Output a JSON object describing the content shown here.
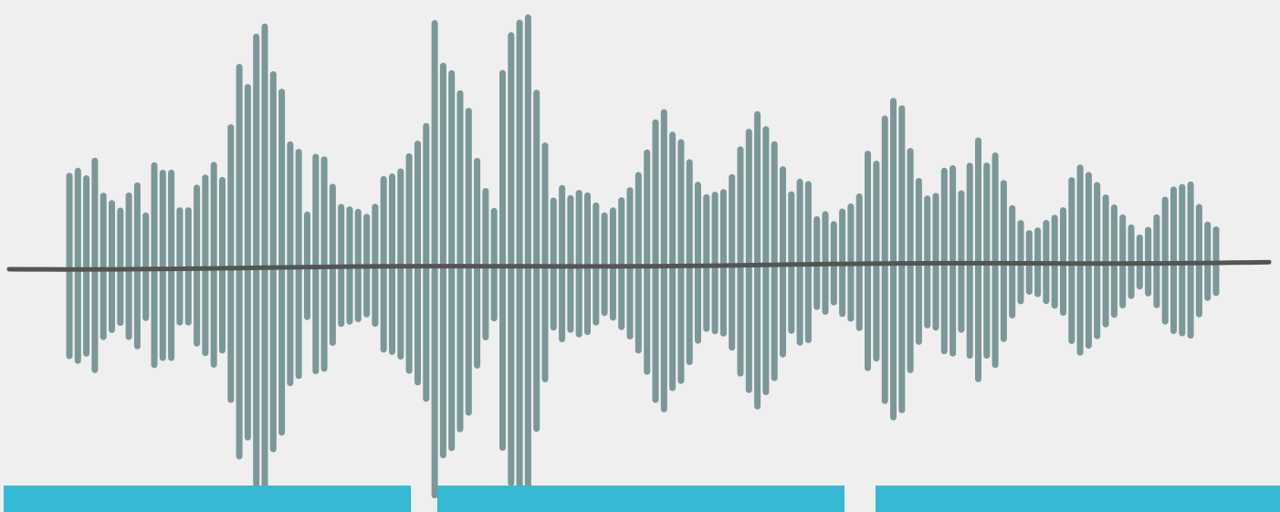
{
  "colors": {
    "background": "#efefef",
    "waveform": "#7b9799",
    "baseline": "#545454",
    "segment": "#35b9d4"
  },
  "waveform": {
    "amplitudes": [
      0.37,
      0.39,
      0.36,
      0.43,
      0.29,
      0.26,
      0.23,
      0.29,
      0.33,
      0.21,
      0.41,
      0.38,
      0.38,
      0.23,
      0.23,
      0.32,
      0.36,
      0.41,
      0.35,
      0.56,
      0.8,
      0.72,
      0.92,
      0.96,
      0.77,
      0.7,
      0.49,
      0.46,
      0.21,
      0.44,
      0.43,
      0.32,
      0.24,
      0.23,
      0.22,
      0.2,
      0.24,
      0.35,
      0.36,
      0.38,
      0.44,
      0.49,
      0.56,
      0.97,
      0.8,
      0.77,
      0.69,
      0.62,
      0.42,
      0.3,
      0.22,
      0.77,
      0.92,
      0.97,
      0.99,
      0.69,
      0.48,
      0.26,
      0.31,
      0.27,
      0.29,
      0.28,
      0.24,
      0.2,
      0.22,
      0.26,
      0.3,
      0.36,
      0.45,
      0.57,
      0.61,
      0.52,
      0.49,
      0.41,
      0.32,
      0.27,
      0.28,
      0.29,
      0.35,
      0.46,
      0.53,
      0.6,
      0.54,
      0.48,
      0.38,
      0.28,
      0.33,
      0.32,
      0.18,
      0.2,
      0.16,
      0.21,
      0.23,
      0.27,
      0.44,
      0.4,
      0.58,
      0.65,
      0.62,
      0.45,
      0.33,
      0.26,
      0.27,
      0.37,
      0.38,
      0.28,
      0.39,
      0.49,
      0.39,
      0.43,
      0.32,
      0.22,
      0.16,
      0.12,
      0.13,
      0.16,
      0.18,
      0.21,
      0.33,
      0.38,
      0.35,
      0.31,
      0.26,
      0.22,
      0.18,
      0.14,
      0.1,
      0.13,
      0.18,
      0.25,
      0.29,
      0.3,
      0.31,
      0.22,
      0.15,
      0.13
    ]
  },
  "segments": [
    {
      "id": "seg-1"
    },
    {
      "id": "seg-2"
    },
    {
      "id": "seg-3"
    }
  ]
}
